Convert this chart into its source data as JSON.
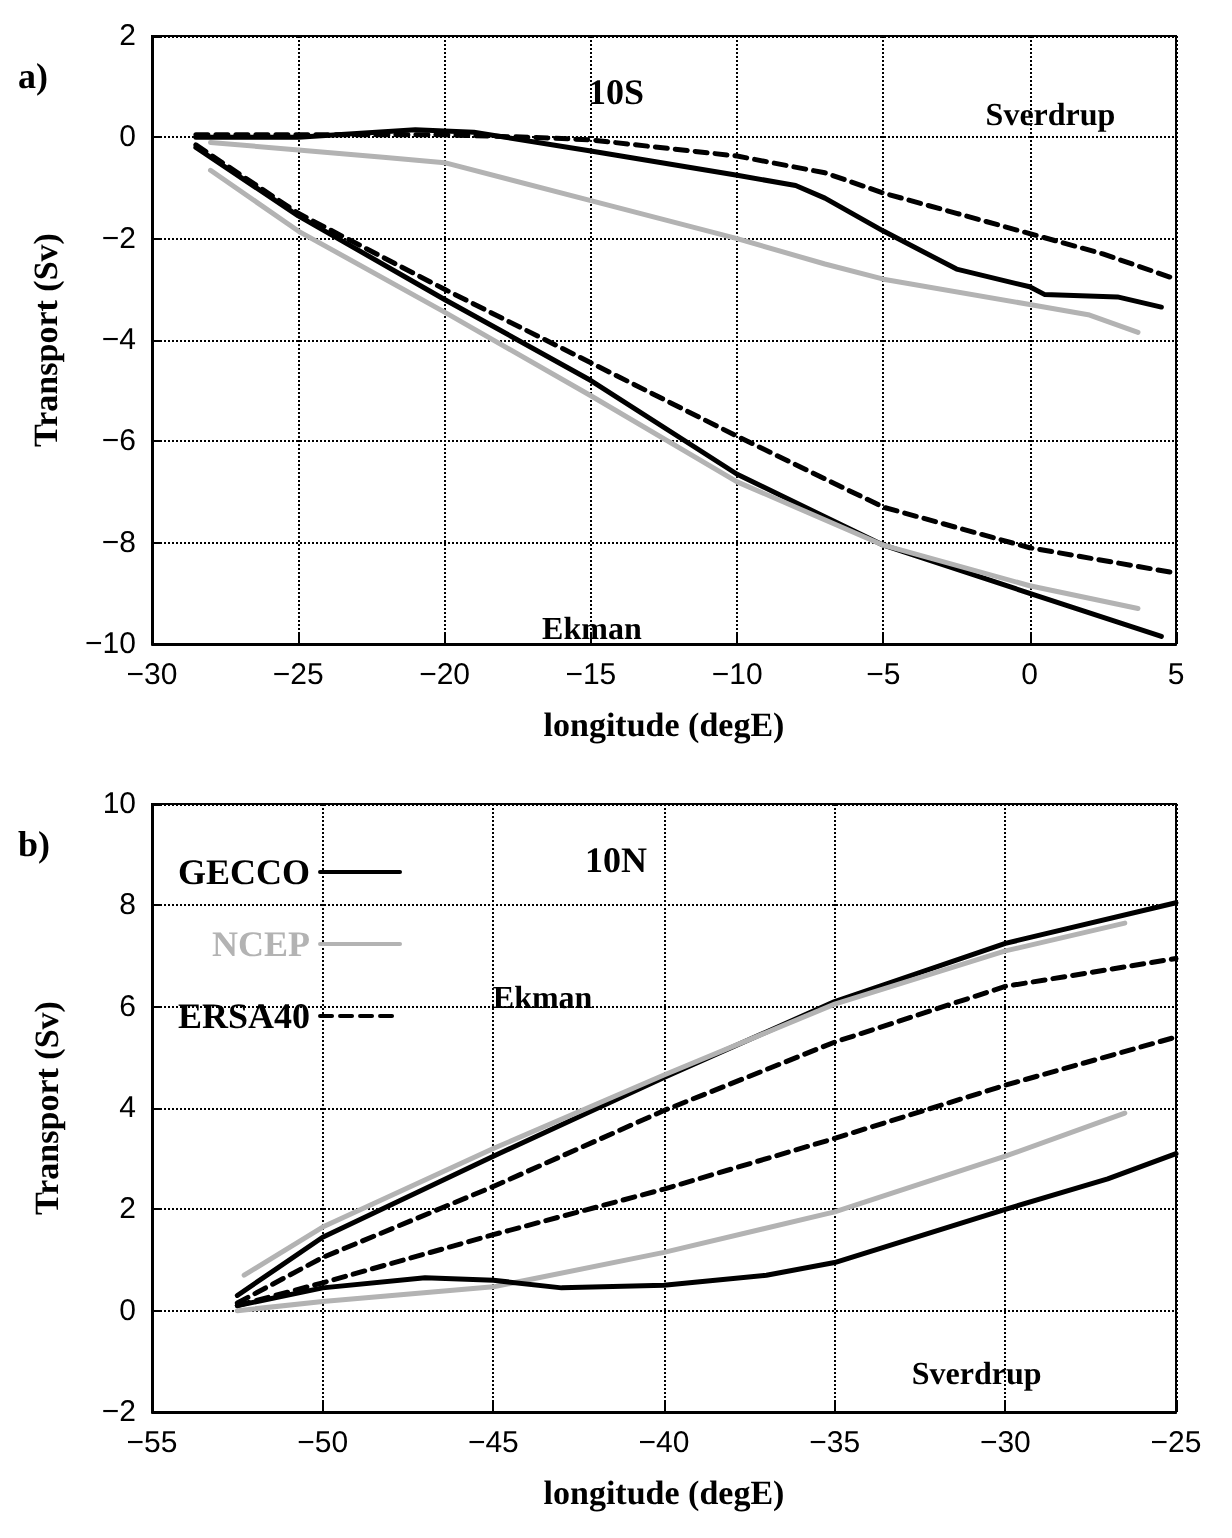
{
  "chart_data": [
    {
      "type": "line",
      "title": "a)",
      "subtitle": "10S",
      "xlabel": "longitude (degE)",
      "ylabel": "Transport (Sv)",
      "xlim": [
        -30,
        5
      ],
      "xticks": [
        -30,
        -25,
        -20,
        -15,
        -10,
        -5,
        0,
        5
      ],
      "ylim": [
        -10,
        2
      ],
      "yticks": [
        -10,
        -8,
        -6,
        -4,
        -2,
        0,
        2
      ],
      "grid": true,
      "legend": false,
      "marker": "none",
      "annotations": [
        "Sverdrup",
        "Ekman"
      ],
      "series": [
        {
          "color": "#000000",
          "line_style": "solid",
          "x": [
            -28.5,
            -25,
            -21,
            -19,
            -15,
            -10,
            -8,
            -7,
            -5,
            -2.5,
            0,
            0.5,
            3,
            4.5
          ],
          "values": [
            0.0,
            0.0,
            0.15,
            0.1,
            -0.27,
            -0.75,
            -0.95,
            -1.2,
            -1.85,
            -2.6,
            -2.95,
            -3.1,
            -3.15,
            -3.35
          ]
        },
        {
          "color": "#b3b3b3",
          "line_style": "solid",
          "x": [
            -28,
            -25,
            -22,
            -20,
            -15,
            -10,
            -7,
            -5,
            0,
            2,
            3.7
          ],
          "values": [
            -0.1,
            -0.25,
            -0.4,
            -0.5,
            -1.25,
            -2.0,
            -2.5,
            -2.8,
            -3.3,
            -3.5,
            -3.85
          ]
        },
        {
          "color": "#000000",
          "line_style": "dashed",
          "x": [
            -28.5,
            -20,
            -17,
            -15,
            -10,
            -7,
            -5,
            -2.5,
            0,
            2.5,
            5
          ],
          "values": [
            0.05,
            0.05,
            0.0,
            -0.05,
            -0.37,
            -0.7,
            -1.1,
            -1.5,
            -1.9,
            -2.3,
            -2.8
          ]
        },
        {
          "color": "#000000",
          "line_style": "solid",
          "x": [
            -28.5,
            -25,
            -20,
            -15,
            -10,
            -5,
            0,
            4.5
          ],
          "values": [
            -0.2,
            -1.55,
            -3.2,
            -4.8,
            -6.65,
            -8.05,
            -9.0,
            -9.85
          ]
        },
        {
          "color": "#b3b3b3",
          "line_style": "solid",
          "x": [
            -28,
            -25,
            -20,
            -15,
            -10,
            -5,
            0,
            3.7
          ],
          "values": [
            -0.65,
            -1.85,
            -3.45,
            -5.1,
            -6.8,
            -8.05,
            -8.85,
            -9.3
          ]
        },
        {
          "color": "#000000",
          "line_style": "dashed",
          "x": [
            -28.5,
            -25,
            -20,
            -15,
            -10,
            -5,
            0,
            5
          ],
          "values": [
            -0.15,
            -1.5,
            -3.0,
            -4.45,
            -5.9,
            -7.3,
            -8.1,
            -8.6
          ]
        }
      ]
    },
    {
      "type": "line",
      "title": "b)",
      "subtitle": "10N",
      "xlabel": "longitude (degE)",
      "ylabel": "Transport (Sv)",
      "xlim": [
        -55,
        -25
      ],
      "xticks": [
        -55,
        -50,
        -45,
        -40,
        -35,
        -30,
        -25
      ],
      "ylim": [
        -2,
        10
      ],
      "yticks": [
        -2,
        0,
        2,
        4,
        6,
        8,
        10
      ],
      "grid": true,
      "legend": "top left",
      "marker": "none",
      "annotations": [
        "Ekman",
        "Sverdrup"
      ],
      "series": [
        {
          "name": "GECCO",
          "color": "#000000",
          "line_style": "solid",
          "x": [
            -52.5,
            -50,
            -45,
            -40,
            -35,
            -30,
            -25
          ],
          "values": [
            0.3,
            1.45,
            3.05,
            4.6,
            6.1,
            7.25,
            8.05
          ]
        },
        {
          "name": "NCEP",
          "color": "#b3b3b3",
          "line_style": "solid",
          "x": [
            -52.3,
            -50,
            -45,
            -40,
            -35,
            -30,
            -26.5
          ],
          "values": [
            0.7,
            1.65,
            3.2,
            4.65,
            6.05,
            7.1,
            7.65
          ]
        },
        {
          "name": "ERSA40",
          "color": "#000000",
          "line_style": "dashed",
          "x": [
            -52.5,
            -50,
            -45,
            -40,
            -35,
            -30,
            -25
          ],
          "values": [
            0.15,
            1.05,
            2.45,
            3.95,
            5.3,
            6.4,
            6.95
          ]
        },
        {
          "color": "#000000",
          "line_style": "dashed",
          "x": [
            -52.5,
            -50,
            -45,
            -40,
            -35,
            -30,
            -25
          ],
          "values": [
            0.1,
            0.55,
            1.5,
            2.4,
            3.4,
            4.45,
            5.4
          ]
        },
        {
          "color": "#b3b3b3",
          "line_style": "solid",
          "x": [
            -52.5,
            -50,
            -45,
            -40,
            -35,
            -30,
            -26.5
          ],
          "values": [
            0.0,
            0.18,
            0.47,
            1.15,
            1.95,
            3.05,
            3.9
          ]
        },
        {
          "color": "#000000",
          "line_style": "solid",
          "x": [
            -52.5,
            -50,
            -47,
            -45,
            -43,
            -40,
            -37,
            -35,
            -30,
            -27,
            -25
          ],
          "values": [
            0.1,
            0.45,
            0.65,
            0.6,
            0.45,
            0.5,
            0.7,
            0.95,
            2.0,
            2.6,
            3.1
          ]
        }
      ]
    }
  ]
}
